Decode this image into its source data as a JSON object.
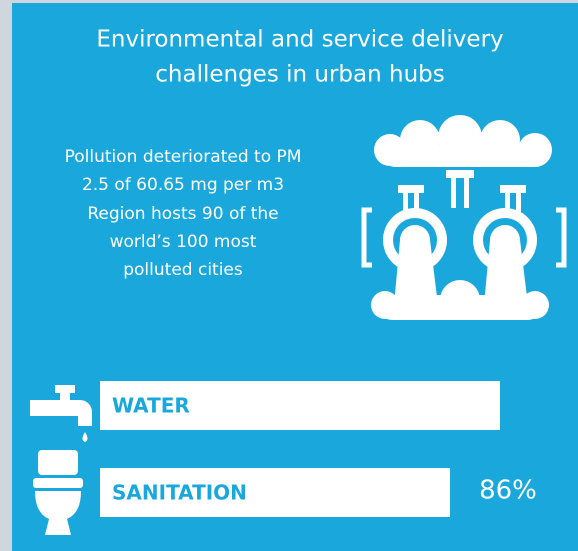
{
  "title": [
    "Environmental and service delivery",
    "challenges in urban hubs"
  ],
  "description": [
    "Pollution deteriorated to PM",
    "2.5 of 60.65 mg per m3",
    "Region hosts 90 of the",
    "world’s 100 most",
    "polluted cities"
  ],
  "bars": [
    {
      "label": "WATER"
    },
    {
      "label": "SANITATION",
      "value": "86%"
    }
  ]
}
